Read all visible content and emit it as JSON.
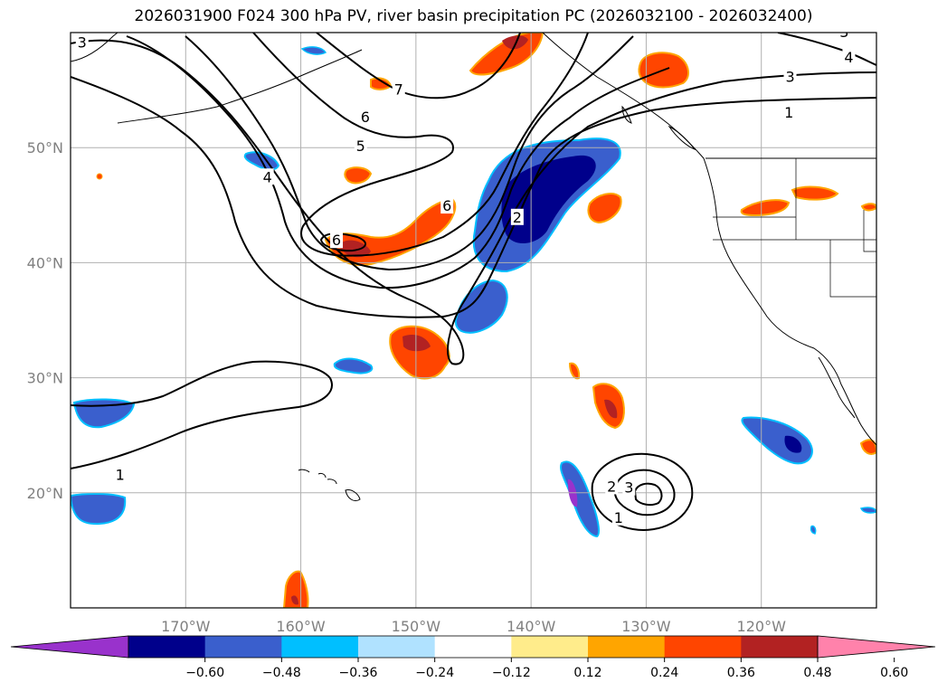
{
  "title": "2026031900 F024 300 hPa PV, river basin precipitation PC (2026032100 - 2026032400)",
  "map": {
    "lon_range": [
      -180,
      -110
    ],
    "lat_range": [
      10,
      60
    ],
    "lat_ticks": [
      {
        "v": 20,
        "label": "20°N"
      },
      {
        "v": 30,
        "label": "30°N"
      },
      {
        "v": 40,
        "label": "40°N"
      },
      {
        "v": 50,
        "label": "50°N"
      }
    ],
    "lon_ticks": [
      {
        "v": -170,
        "label": "170°W"
      },
      {
        "v": -160,
        "label": "160°W"
      },
      {
        "v": -150,
        "label": "150°W"
      },
      {
        "v": -140,
        "label": "140°W"
      },
      {
        "v": -130,
        "label": "130°W"
      },
      {
        "v": -120,
        "label": "120°W"
      }
    ],
    "grid": true
  },
  "colorbar": {
    "colors": [
      "#9932cc",
      "#00008b",
      "#3a5fcd",
      "#00bfff",
      "#b0e2ff",
      "#ffffff",
      "#ffec8b",
      "#ffa500",
      "#ff4500",
      "#b22222",
      "#ff82ab"
    ],
    "labels": [
      "−0.60",
      "−0.48",
      "−0.36",
      "−0.24",
      "−0.12",
      "0.12",
      "0.24",
      "0.36",
      "0.48",
      "0.60"
    ],
    "extend": "both"
  },
  "contour_labels": [
    {
      "text": "3",
      "lon": -179,
      "lat": 59.1
    },
    {
      "text": "7",
      "lon": -151.5,
      "lat": 55.0
    },
    {
      "text": "6",
      "lon": -154.4,
      "lat": 52.6
    },
    {
      "text": "5",
      "lon": -154.8,
      "lat": 50.1
    },
    {
      "text": "4",
      "lon": -162.9,
      "lat": 47.4
    },
    {
      "text": "6",
      "lon": -147.3,
      "lat": 44.9
    },
    {
      "text": "2",
      "lon": -141.2,
      "lat": 43.9
    },
    {
      "text": "6",
      "lon": -156.9,
      "lat": 41.9
    },
    {
      "text": "3",
      "lon": -117.5,
      "lat": 56.1
    },
    {
      "text": "1",
      "lon": -117.6,
      "lat": 53.0
    },
    {
      "text": "4",
      "lon": -112.4,
      "lat": 57.8
    },
    {
      "text": "3",
      "lon": -112.8,
      "lat": 60.0
    },
    {
      "text": "1",
      "lon": -175.7,
      "lat": 21.5
    },
    {
      "text": "2",
      "lon": -133.0,
      "lat": 20.5
    },
    {
      "text": "3",
      "lon": -131.5,
      "lat": 20.4
    },
    {
      "text": "1",
      "lon": -132.4,
      "lat": 17.8
    }
  ]
}
